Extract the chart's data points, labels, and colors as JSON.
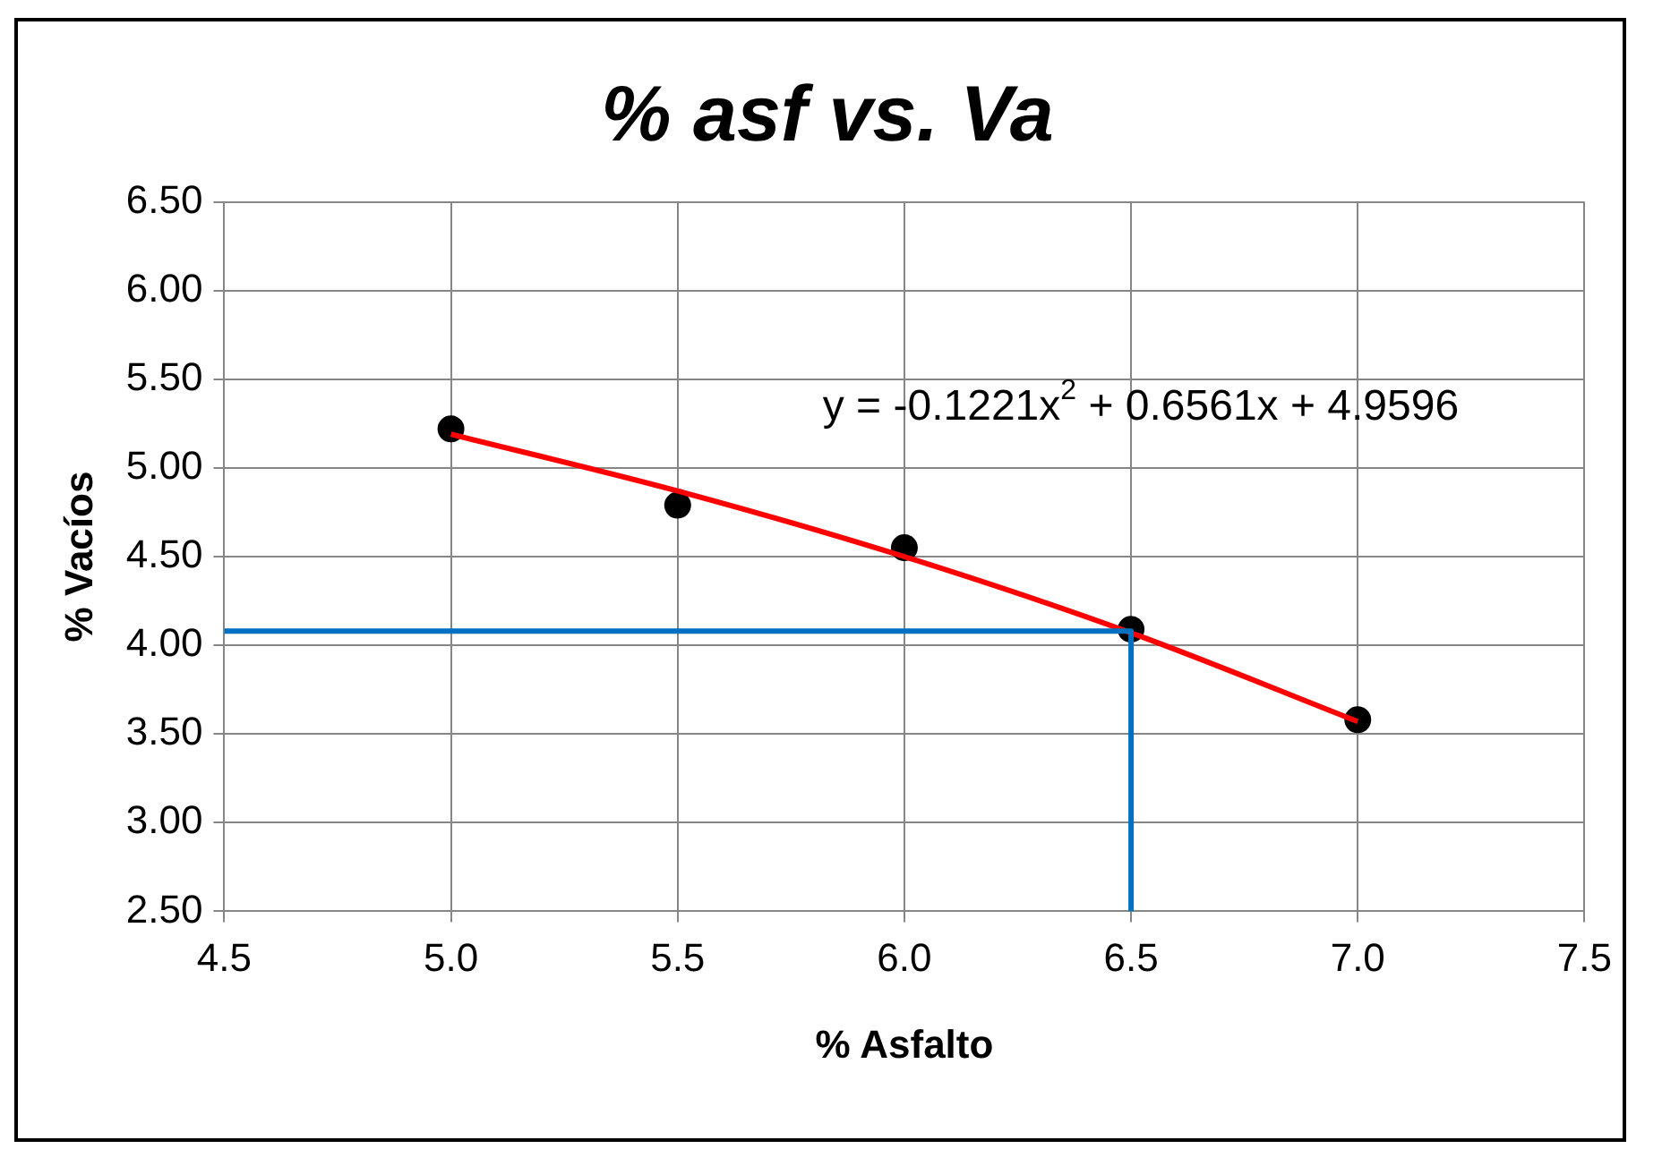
{
  "chart_data": {
    "type": "scatter",
    "title": "% asf vs. Va",
    "xlabel": "% Asfalto",
    "ylabel": "% Vacíos",
    "xlim": [
      4.5,
      7.5
    ],
    "xticks": [
      {
        "value": 4.5,
        "label": "4.5"
      },
      {
        "value": 5,
        "label": "5.0"
      },
      {
        "value": 5.5,
        "label": "5.5"
      },
      {
        "value": 6,
        "label": "6.0"
      },
      {
        "value": 6.5,
        "label": "6.5"
      },
      {
        "value": 7,
        "label": "7.0"
      },
      {
        "value": 7.5,
        "label": "7.5"
      }
    ],
    "ylim": [
      2.5,
      6.5
    ],
    "yticks": [
      {
        "value": 2.5,
        "label": "2.50"
      },
      {
        "value": 3,
        "label": "3.00"
      },
      {
        "value": 3.5,
        "label": "3.50"
      },
      {
        "value": 4,
        "label": "4.00"
      },
      {
        "value": 4.5,
        "label": "4.50"
      },
      {
        "value": 5,
        "label": "5.00"
      },
      {
        "value": 5.5,
        "label": "5.50"
      },
      {
        "value": 6,
        "label": "6.00"
      },
      {
        "value": 6.5,
        "label": "6.50"
      }
    ],
    "grid": true,
    "legend": false,
    "series": [
      {
        "type": "line",
        "marker": "none",
        "color": "#0070c0",
        "x": [
          4.5,
          6.5,
          6.5
        ],
        "values": [
          4.08,
          4.08,
          2.5
        ]
      },
      {
        "type": "line",
        "marker": "none",
        "color": "#ff0000",
        "x": [
          5,
          5.5,
          6,
          6.5,
          7
        ],
        "values": [
          5.19,
          4.87,
          4.5,
          4.07,
          3.57
        ]
      },
      {
        "marker": "circle",
        "color": "#000000",
        "x": [
          5,
          5.5,
          6,
          6.5,
          7
        ],
        "values": [
          5.22,
          4.79,
          4.55,
          4.09,
          3.58
        ]
      }
    ],
    "annotations": [
      "y = -0.1221x$^{2}$ + 0.6561x + 4.9596"
    ]
  }
}
